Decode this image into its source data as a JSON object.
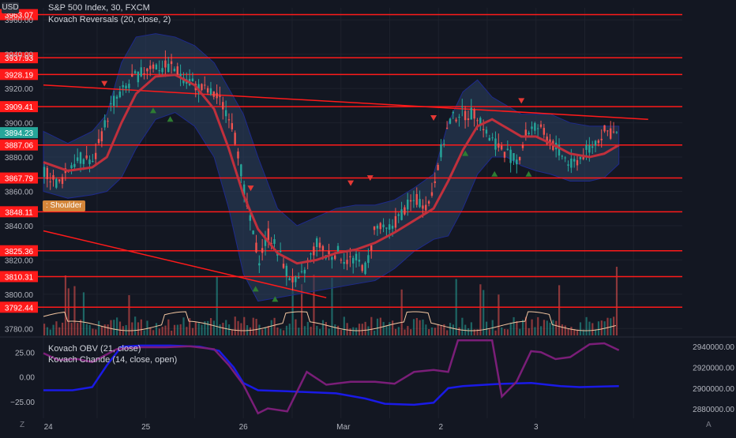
{
  "header": {
    "currency": "USD",
    "title": "S&P 500 Index, 30, FXCM",
    "indicator": "Kovach Reversals (20, close, 2)"
  },
  "lower_header": {
    "obv": "Kovach OBV (21, close)",
    "chande": "Kovach Chande (14, close, open)"
  },
  "pattern_label": ": Shoulder",
  "bottom": {
    "left_btn": "Z",
    "right_btn": "A"
  },
  "colors": {
    "background": "#131722",
    "grid": "#1e222d",
    "level_line": "#ff1a1a",
    "level_tag": "#ff1a1a",
    "up_candle": "#26a69a",
    "down_candle": "#ef5350",
    "band_fill": "#2a3e5c",
    "band_edge": "#1e2a8c",
    "basis": "#c0303c",
    "price_tag": "#26a69a",
    "obv_line": "#1a1ae6",
    "chande_line": "#7a1e78",
    "label_bg": "#d4863a"
  },
  "chart_data": [
    {
      "type": "candlestick",
      "title": "S&P 500 Index, 30, FXCM",
      "x_ticks": [
        "24",
        "25",
        "26",
        "Mar",
        "2",
        "3"
      ],
      "y_ticks": [
        3960,
        3940,
        3920,
        3900,
        3880,
        3860,
        3840,
        3820,
        3800,
        3780
      ],
      "y_tick_labels": [
        "3960.00",
        "3940.00",
        "3920.00",
        "3900.00",
        "3880.00",
        "3860.00",
        "3840.00",
        "3820.00",
        "3800.00",
        "3780.00"
      ],
      "ylim": [
        3776,
        3967
      ],
      "last_price": 3894.23,
      "last_price_label": "3894.23",
      "horizontal_levels": [
        {
          "value": 3963.07,
          "label": "3963.07"
        },
        {
          "value": 3937.93,
          "label": "3937.93"
        },
        {
          "value": 3928.19,
          "label": "3928.19"
        },
        {
          "value": 3909.41,
          "label": "3909.41"
        },
        {
          "value": 3887.06,
          "label": "3887.06"
        },
        {
          "value": 3867.79,
          "label": "3867.79"
        },
        {
          "value": 3848.11,
          "label": "3848.11"
        },
        {
          "value": 3825.36,
          "label": "3825.36"
        },
        {
          "value": 3810.31,
          "label": "3810.31"
        },
        {
          "value": 3792.44,
          "label": "3792.44"
        }
      ],
      "trendlines": [
        {
          "from": {
            "x": 0,
            "y": 3922
          },
          "to": {
            "x": 12.4,
            "y": 3902
          }
        },
        {
          "from": {
            "x": 0,
            "y": 3837
          },
          "to": {
            "x": 5.8,
            "y": 3798
          }
        }
      ],
      "price_path": [
        [
          0,
          3872
        ],
        [
          0.3,
          3864
        ],
        [
          0.6,
          3878
        ],
        [
          0.9,
          3880
        ],
        [
          1.0,
          3875
        ],
        [
          1.2,
          3895
        ],
        [
          1.4,
          3912
        ],
        [
          1.6,
          3918
        ],
        [
          1.8,
          3925
        ],
        [
          2.0,
          3929
        ],
        [
          2.2,
          3934
        ],
        [
          2.4,
          3932
        ],
        [
          2.6,
          3933
        ],
        [
          2.9,
          3926
        ],
        [
          3.2,
          3920
        ],
        [
          3.5,
          3916
        ],
        [
          3.8,
          3905
        ],
        [
          4.0,
          3880
        ],
        [
          4.1,
          3860
        ],
        [
          4.2,
          3845
        ],
        [
          4.4,
          3820
        ],
        [
          4.6,
          3835
        ],
        [
          4.8,
          3825
        ],
        [
          5.0,
          3812
        ],
        [
          5.2,
          3805
        ],
        [
          5.4,
          3818
        ],
        [
          5.6,
          3830
        ],
        [
          5.8,
          3822
        ],
        [
          6.0,
          3825
        ],
        [
          6.2,
          3820
        ],
        [
          6.4,
          3820
        ],
        [
          6.6,
          3815
        ],
        [
          6.8,
          3840
        ],
        [
          7.0,
          3836
        ],
        [
          7.2,
          3842
        ],
        [
          7.4,
          3850
        ],
        [
          7.6,
          3855
        ],
        [
          7.9,
          3852
        ],
        [
          8.1,
          3880
        ],
        [
          8.3,
          3900
        ],
        [
          8.5,
          3906
        ],
        [
          8.7,
          3905
        ],
        [
          8.9,
          3905
        ],
        [
          9.1,
          3892
        ],
        [
          9.3,
          3887
        ],
        [
          9.5,
          3882
        ],
        [
          9.7,
          3877
        ],
        [
          9.9,
          3895
        ],
        [
          10.1,
          3898
        ],
        [
          10.4,
          3888
        ],
        [
          10.6,
          3882
        ],
        [
          10.8,
          3875
        ],
        [
          11.0,
          3880
        ],
        [
          11.2,
          3886
        ],
        [
          11.5,
          3895
        ],
        [
          11.8,
          3893
        ]
      ],
      "basis_path": [
        [
          0,
          3877
        ],
        [
          0.5,
          3872
        ],
        [
          1.0,
          3874
        ],
        [
          1.3,
          3880
        ],
        [
          1.6,
          3900
        ],
        [
          1.9,
          3917
        ],
        [
          2.3,
          3927
        ],
        [
          2.7,
          3928
        ],
        [
          3.1,
          3922
        ],
        [
          3.5,
          3908
        ],
        [
          3.8,
          3885
        ],
        [
          4.1,
          3858
        ],
        [
          4.4,
          3838
        ],
        [
          4.8,
          3824
        ],
        [
          5.2,
          3818
        ],
        [
          5.6,
          3820
        ],
        [
          6.0,
          3824
        ],
        [
          6.4,
          3826
        ],
        [
          6.8,
          3830
        ],
        [
          7.2,
          3836
        ],
        [
          7.6,
          3843
        ],
        [
          8.0,
          3850
        ],
        [
          8.3,
          3866
        ],
        [
          8.6,
          3884
        ],
        [
          8.9,
          3898
        ],
        [
          9.2,
          3902
        ],
        [
          9.5,
          3897
        ],
        [
          9.8,
          3892
        ],
        [
          10.1,
          3892
        ],
        [
          10.4,
          3888
        ],
        [
          10.8,
          3882
        ],
        [
          11.2,
          3880
        ],
        [
          11.5,
          3882
        ],
        [
          11.8,
          3887
        ]
      ],
      "band_upper": [
        [
          0,
          3895
        ],
        [
          0.5,
          3888
        ],
        [
          1.0,
          3895
        ],
        [
          1.3,
          3905
        ],
        [
          1.6,
          3935
        ],
        [
          1.9,
          3950
        ],
        [
          2.3,
          3952
        ],
        [
          2.7,
          3950
        ],
        [
          3.1,
          3945
        ],
        [
          3.5,
          3935
        ],
        [
          3.8,
          3920
        ],
        [
          4.1,
          3905
        ],
        [
          4.4,
          3880
        ],
        [
          4.8,
          3850
        ],
        [
          5.2,
          3840
        ],
        [
          5.6,
          3845
        ],
        [
          6.0,
          3850
        ],
        [
          6.4,
          3852
        ],
        [
          6.8,
          3852
        ],
        [
          7.2,
          3855
        ],
        [
          7.6,
          3862
        ],
        [
          8.0,
          3870
        ],
        [
          8.3,
          3900
        ],
        [
          8.6,
          3918
        ],
        [
          8.9,
          3925
        ],
        [
          9.2,
          3915
        ],
        [
          9.5,
          3910
        ],
        [
          9.8,
          3905
        ],
        [
          10.1,
          3905
        ],
        [
          10.4,
          3905
        ],
        [
          10.8,
          3900
        ],
        [
          11.2,
          3898
        ],
        [
          11.5,
          3898
        ],
        [
          11.8,
          3898
        ]
      ],
      "band_lower": [
        [
          0,
          3860
        ],
        [
          0.5,
          3856
        ],
        [
          1.0,
          3858
        ],
        [
          1.3,
          3860
        ],
        [
          1.6,
          3868
        ],
        [
          1.9,
          3885
        ],
        [
          2.3,
          3902
        ],
        [
          2.7,
          3906
        ],
        [
          3.1,
          3898
        ],
        [
          3.5,
          3880
        ],
        [
          3.8,
          3850
        ],
        [
          4.1,
          3812
        ],
        [
          4.4,
          3796
        ],
        [
          4.8,
          3798
        ],
        [
          5.2,
          3800
        ],
        [
          5.6,
          3802
        ],
        [
          6.0,
          3804
        ],
        [
          6.4,
          3806
        ],
        [
          6.8,
          3808
        ],
        [
          7.2,
          3815
        ],
        [
          7.6,
          3825
        ],
        [
          8.0,
          3832
        ],
        [
          8.3,
          3834
        ],
        [
          8.6,
          3850
        ],
        [
          8.9,
          3870
        ],
        [
          9.2,
          3880
        ],
        [
          9.5,
          3880
        ],
        [
          9.8,
          3875
        ],
        [
          10.1,
          3872
        ],
        [
          10.4,
          3870
        ],
        [
          10.8,
          3866
        ],
        [
          11.2,
          3866
        ],
        [
          11.5,
          3868
        ],
        [
          11.8,
          3876
        ]
      ],
      "reversal_down": [
        [
          1.25,
          3923
        ],
        [
          4.25,
          3862
        ],
        [
          6.3,
          3865
        ],
        [
          6.7,
          3868
        ],
        [
          8.0,
          3903
        ],
        [
          9.8,
          3913
        ]
      ],
      "reversal_up": [
        [
          2.25,
          3907
        ],
        [
          2.6,
          3902
        ],
        [
          4.35,
          3803
        ],
        [
          4.75,
          3797
        ],
        [
          8.65,
          3882
        ],
        [
          9.25,
          3870
        ],
        [
          9.95,
          3870
        ]
      ]
    },
    {
      "type": "line",
      "title": "Kovach OBV (21, close)",
      "right_y_ticks": [
        2940000,
        2920000,
        2900000,
        2880000
      ],
      "right_y_tick_labels": [
        "2940000.00",
        "2920000.00",
        "2900000.00",
        "2880000.00"
      ],
      "ylim": [
        2871000,
        2947000
      ],
      "series": [
        {
          "name": "Kovach OBV (21, close)",
          "x": [
            0,
            0.6,
            1.0,
            1.3,
            1.6,
            2.0,
            2.6,
            3.2,
            3.6,
            3.9,
            4.1,
            4.4,
            5.0,
            6.0,
            6.6,
            7.0,
            7.6,
            8.0,
            8.3,
            8.6,
            9.3,
            10.0,
            10.6,
            11.0,
            11.8
          ],
          "values": [
            2898000,
            2898000,
            2901000,
            2922000,
            2940000,
            2941000,
            2941000,
            2940000,
            2936000,
            2920000,
            2905000,
            2898000,
            2897000,
            2895000,
            2890000,
            2885000,
            2884000,
            2886000,
            2900000,
            2902000,
            2904000,
            2905000,
            2902000,
            2901000,
            2902000
          ]
        }
      ]
    },
    {
      "type": "line",
      "title": "Kovach Chande (14, close, open)",
      "left_y_ticks": [
        25,
        0,
        -25
      ],
      "left_y_tick_labels": [
        "25.00",
        "0.00",
        "−25.00"
      ],
      "ylim": [
        -42,
        38
      ],
      "series": [
        {
          "name": "Kovach Chande (14, close, open)",
          "x": [
            0,
            0.3,
            0.7,
            1.0,
            1.5,
            2.0,
            2.5,
            3.0,
            3.5,
            3.8,
            4.1,
            4.4,
            4.6,
            5.0,
            5.4,
            5.8,
            6.3,
            6.8,
            7.2,
            7.6,
            8.0,
            8.3,
            8.5,
            8.8,
            9.2,
            9.4,
            9.7,
            10.0,
            10.2,
            10.5,
            10.8,
            11.2,
            11.5,
            11.8
          ],
          "values": [
            24,
            17,
            18,
            15,
            28,
            30,
            30,
            31,
            28,
            12,
            -8,
            -37,
            -32,
            -35,
            5,
            -8,
            -5,
            -5,
            -7,
            5,
            7,
            5,
            37,
            37,
            37,
            -20,
            -5,
            26,
            25,
            18,
            20,
            33,
            34,
            27
          ]
        }
      ]
    }
  ]
}
